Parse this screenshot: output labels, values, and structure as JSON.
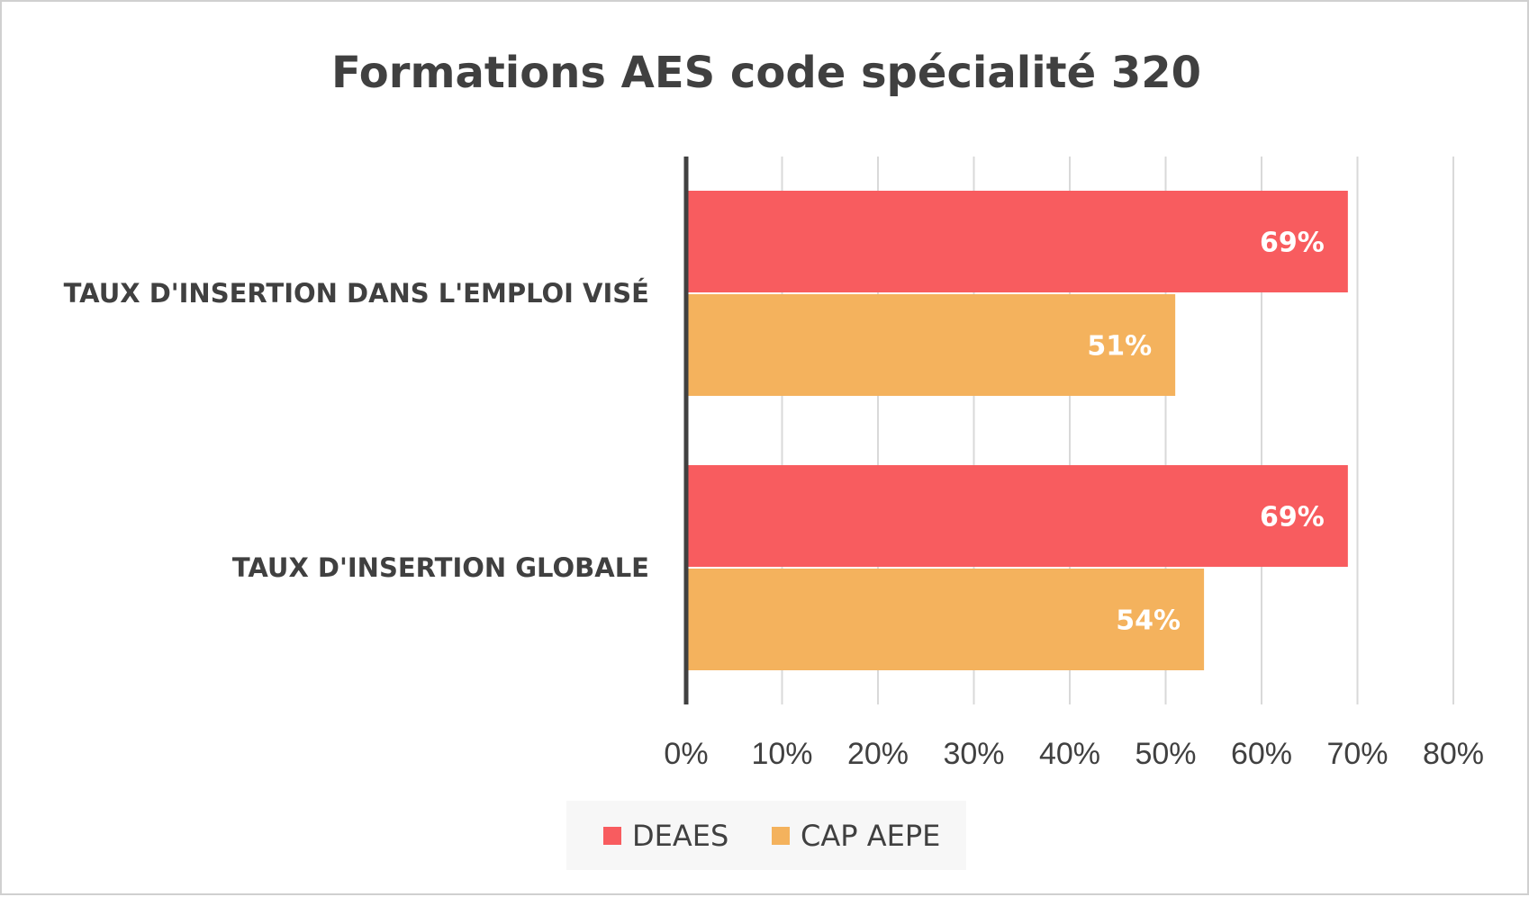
{
  "chart_data": {
    "type": "bar",
    "orientation": "horizontal",
    "title": "Formations AES code spécialité 320",
    "categories": [
      "TAUX D'INSERTION DANS L'EMPLOI VISÉ",
      "TAUX D'INSERTION GLOBALE"
    ],
    "series": [
      {
        "name": "DEAES",
        "color": "#f85c5f",
        "values": [
          69,
          69
        ],
        "labels": [
          "69%",
          "69%"
        ]
      },
      {
        "name": "CAP AEPE",
        "color": "#f4b25d",
        "values": [
          51,
          54
        ],
        "labels": [
          "51%",
          "54%"
        ]
      }
    ],
    "xlim": [
      0,
      80
    ],
    "xticks": [
      0,
      10,
      20,
      30,
      40,
      50,
      60,
      70,
      80
    ],
    "xtick_labels": [
      "0%",
      "10%",
      "20%",
      "30%",
      "40%",
      "50%",
      "60%",
      "70%",
      "80%"
    ],
    "grid": true,
    "legend": {
      "position": "bottom",
      "entries": [
        "DEAES",
        "CAP AEPE"
      ]
    }
  }
}
